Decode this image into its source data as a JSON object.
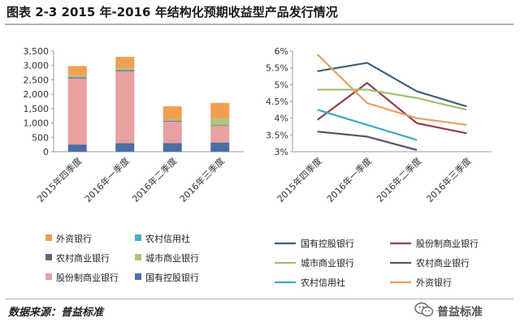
{
  "page": {
    "title": "图表 2-3 2015 年-2016 年结构化预期收益型产品发行情况",
    "source": "数据来源：普益标准",
    "watermark": "普益标准",
    "watermark_icon": "wechat-icon"
  },
  "colors": {
    "国有控股银行": "#4a6fa5",
    "股份制商业银行": "#e8a0a0",
    "城市商业银行": "#a8c878",
    "农村商业银行": "#706080",
    "农村信用社": "#4ab0c0",
    "外资银行": "#f0a050",
    "line_国有控股银行": "#3d6080",
    "line_股份制商业银行": "#904050",
    "line_城市商业银行": "#a0c070",
    "line_农村商业银行": "#605070",
    "line_农村信用社": "#40a8c0",
    "line_外资银行": "#e8a060"
  },
  "chart_data": [
    {
      "type": "bar",
      "stacked": true,
      "categories": [
        "2015年四季度",
        "2016年一季度",
        "2016年二季度",
        "2016年三季度"
      ],
      "series": [
        {
          "name": "国有控股银行",
          "values": [
            250,
            300,
            300,
            320
          ]
        },
        {
          "name": "股份制商业银行",
          "values": [
            2300,
            2500,
            750,
            580
          ]
        },
        {
          "name": "农村商业银行",
          "values": [
            40,
            40,
            30,
            20
          ]
        },
        {
          "name": "城市商业银行",
          "values": [
            60,
            60,
            40,
            220
          ]
        },
        {
          "name": "农村信用社",
          "values": [
            10,
            10,
            10,
            10
          ]
        },
        {
          "name": "外资银行",
          "values": [
            320,
            390,
            450,
            550
          ]
        }
      ],
      "ylim": [
        0,
        3500
      ],
      "yticks": [
        "0",
        "500",
        "1,000",
        "1,500",
        "2,000",
        "2,500",
        "3,000",
        "3,500"
      ],
      "legend": {
        "placement": "bottom",
        "items": [
          "外资银行",
          "农村信用社",
          "农村商业银行",
          "城市商业银行",
          "股份制商业银行",
          "国有控股银行"
        ]
      }
    },
    {
      "type": "line",
      "categories": [
        "2015年四季度",
        "2016年一季度",
        "2016年二季度",
        "2016年三季度"
      ],
      "series": [
        {
          "name": "国有控股银行",
          "values": [
            5.4,
            5.65,
            4.8,
            4.35
          ]
        },
        {
          "name": "股份制商业银行",
          "values": [
            3.95,
            5.05,
            3.85,
            3.55
          ]
        },
        {
          "name": "城市商业银行",
          "values": [
            4.85,
            4.85,
            4.6,
            4.25
          ]
        },
        {
          "name": "农村商业银行",
          "values": [
            3.6,
            3.45,
            3.05,
            null
          ]
        },
        {
          "name": "农村信用社",
          "values": [
            4.25,
            3.8,
            3.35,
            null
          ]
        },
        {
          "name": "外资银行",
          "values": [
            5.9,
            4.45,
            4.0,
            3.8
          ]
        }
      ],
      "ylim": [
        3,
        6
      ],
      "yticks": [
        "3%",
        "3.5%",
        "4%",
        "4.5%",
        "5%",
        "5.5%",
        "6%"
      ],
      "legend": {
        "placement": "bottom",
        "items": [
          "国有控股银行",
          "股份制商业银行",
          "城市商业银行",
          "农村商业银行",
          "农村信用社",
          "外资银行"
        ]
      }
    }
  ]
}
